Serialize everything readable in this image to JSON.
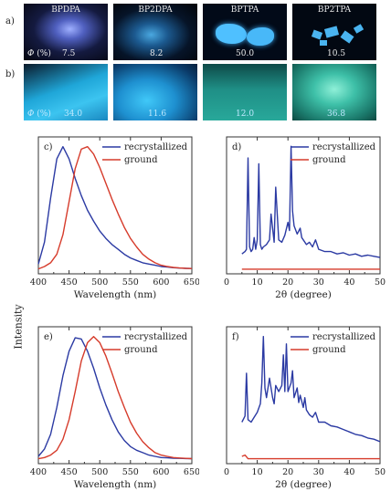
{
  "row_a_label": "a)",
  "row_b_label": "b)",
  "phi_symbol": "Φ",
  "phi_unit": "(%)",
  "photos_a": [
    {
      "name": "BPDPA",
      "phi": "7.5"
    },
    {
      "name": "BP2DPA",
      "phi": "8.2"
    },
    {
      "name": "BPTPA",
      "phi": "50.0"
    },
    {
      "name": "BP2TPA",
      "phi": "10.5"
    }
  ],
  "photos_b": [
    {
      "phi": "34.0"
    },
    {
      "phi": "11.6"
    },
    {
      "phi": "12.0"
    },
    {
      "phi": "36.8"
    }
  ],
  "y_axis_label": "Intensity",
  "chart_data": [
    {
      "panel": "c)",
      "type": "line",
      "xlabel": "Wavelength (nm)",
      "ylabel": "Intensity",
      "xlim": [
        400,
        650
      ],
      "xticks": [
        400,
        450,
        500,
        550,
        600,
        650
      ],
      "legend_position": "top-right",
      "series": [
        {
          "name": "recrystallized",
          "color": "#2b3aa3",
          "x": [
            400,
            410,
            420,
            430,
            440,
            450,
            460,
            470,
            480,
            490,
            500,
            510,
            520,
            530,
            540,
            550,
            560,
            570,
            580,
            590,
            600,
            610,
            620,
            630,
            640,
            650
          ],
          "y": [
            0.04,
            0.22,
            0.58,
            0.9,
            1.0,
            0.9,
            0.74,
            0.6,
            0.48,
            0.39,
            0.31,
            0.25,
            0.2,
            0.16,
            0.12,
            0.09,
            0.07,
            0.05,
            0.04,
            0.03,
            0.02,
            0.015,
            0.01,
            0.007,
            0.005,
            0.003
          ]
        },
        {
          "name": "ground",
          "color": "#d63b2b",
          "x": [
            400,
            410,
            420,
            430,
            440,
            450,
            460,
            470,
            480,
            490,
            500,
            510,
            520,
            530,
            540,
            550,
            560,
            570,
            580,
            590,
            600,
            610,
            620,
            630,
            640,
            650
          ],
          "y": [
            0.0,
            0.02,
            0.05,
            0.12,
            0.28,
            0.55,
            0.82,
            0.98,
            1.0,
            0.94,
            0.83,
            0.7,
            0.57,
            0.45,
            0.34,
            0.25,
            0.18,
            0.12,
            0.08,
            0.05,
            0.03,
            0.02,
            0.012,
            0.008,
            0.005,
            0.003
          ]
        }
      ]
    },
    {
      "panel": "d)",
      "type": "line",
      "xlabel": "2θ (degree)",
      "ylabel": "",
      "xlim": [
        0,
        50
      ],
      "xticks": [
        0,
        10,
        20,
        30,
        40,
        50
      ],
      "legend_position": "top-right",
      "series": [
        {
          "name": "recrystallized",
          "color": "#2b3aa3",
          "x": [
            5,
            6,
            6.5,
            7,
            7.5,
            8,
            8.5,
            9,
            9.5,
            10,
            10.5,
            11,
            11.5,
            12,
            13,
            14,
            14.5,
            15,
            15.5,
            16,
            17,
            18,
            19,
            20,
            20.5,
            21,
            21.5,
            22,
            23,
            24,
            24.5,
            25,
            26,
            27,
            28,
            29,
            30,
            32,
            34,
            36,
            38,
            40,
            42,
            44,
            46,
            48,
            50
          ],
          "y": [
            0.08,
            0.1,
            0.12,
            0.9,
            0.14,
            0.1,
            0.12,
            0.22,
            0.12,
            0.2,
            0.85,
            0.16,
            0.12,
            0.14,
            0.16,
            0.2,
            0.42,
            0.3,
            0.18,
            0.65,
            0.2,
            0.18,
            0.24,
            0.35,
            0.28,
            1.0,
            0.45,
            0.32,
            0.25,
            0.3,
            0.22,
            0.2,
            0.16,
            0.18,
            0.14,
            0.2,
            0.12,
            0.1,
            0.1,
            0.08,
            0.09,
            0.07,
            0.08,
            0.06,
            0.07,
            0.06,
            0.05
          ]
        },
        {
          "name": "ground",
          "color": "#d63b2b",
          "x": [
            5,
            10,
            20,
            30,
            40,
            50
          ],
          "y": [
            -0.05,
            -0.05,
            -0.05,
            -0.05,
            -0.05,
            -0.05
          ]
        }
      ]
    },
    {
      "panel": "e)",
      "type": "line",
      "xlabel": "Wavelength (nm)",
      "ylabel": "Intensity",
      "xlim": [
        400,
        650
      ],
      "xticks": [
        400,
        450,
        500,
        550,
        600,
        650
      ],
      "legend_position": "top-right",
      "series": [
        {
          "name": "recrystallized",
          "color": "#2b3aa3",
          "x": [
            400,
            410,
            420,
            430,
            440,
            450,
            460,
            470,
            480,
            490,
            500,
            510,
            520,
            530,
            540,
            550,
            560,
            570,
            580,
            590,
            600,
            610,
            620,
            630,
            640,
            650
          ],
          "y": [
            0.02,
            0.08,
            0.2,
            0.42,
            0.68,
            0.88,
            0.99,
            0.98,
            0.88,
            0.74,
            0.58,
            0.44,
            0.32,
            0.22,
            0.15,
            0.1,
            0.07,
            0.05,
            0.03,
            0.02,
            0.01,
            0.008,
            0.005,
            0.003,
            0.002,
            0.001
          ]
        },
        {
          "name": "ground",
          "color": "#d63b2b",
          "x": [
            400,
            410,
            420,
            430,
            440,
            450,
            460,
            470,
            480,
            490,
            500,
            510,
            520,
            530,
            540,
            550,
            560,
            570,
            580,
            590,
            600,
            610,
            620,
            630,
            640,
            650
          ],
          "y": [
            0.0,
            0.01,
            0.03,
            0.07,
            0.16,
            0.32,
            0.55,
            0.8,
            0.95,
            1.0,
            0.95,
            0.84,
            0.7,
            0.55,
            0.42,
            0.3,
            0.21,
            0.14,
            0.09,
            0.05,
            0.03,
            0.02,
            0.01,
            0.006,
            0.003,
            0.001
          ]
        }
      ]
    },
    {
      "panel": "f)",
      "type": "line",
      "xlabel": "2θ (degree)",
      "ylabel": "",
      "xlim": [
        0,
        50
      ],
      "xticks": [
        0,
        10,
        20,
        30,
        40,
        50
      ],
      "legend_position": "top-right",
      "series": [
        {
          "name": "recrystallized",
          "color": "#2b3aa3",
          "x": [
            5,
            6,
            6.5,
            7,
            8,
            9,
            10,
            11,
            11.5,
            12,
            12.5,
            13,
            14,
            15,
            15.5,
            16,
            17,
            18,
            18.5,
            19,
            19.5,
            20,
            21,
            21.5,
            22,
            23,
            23.5,
            24,
            25,
            25.5,
            26,
            27,
            28,
            29,
            30,
            32,
            34,
            36,
            38,
            40,
            42,
            44,
            46,
            48,
            50
          ],
          "y": [
            0.3,
            0.35,
            0.7,
            0.32,
            0.3,
            0.34,
            0.38,
            0.45,
            0.62,
            1.0,
            0.58,
            0.5,
            0.66,
            0.5,
            0.45,
            0.6,
            0.55,
            0.6,
            0.85,
            0.55,
            0.94,
            0.55,
            0.62,
            0.72,
            0.5,
            0.58,
            0.46,
            0.52,
            0.42,
            0.5,
            0.4,
            0.36,
            0.34,
            0.38,
            0.3,
            0.3,
            0.27,
            0.26,
            0.24,
            0.22,
            0.2,
            0.19,
            0.17,
            0.16,
            0.14
          ]
        },
        {
          "name": "ground",
          "color": "#d63b2b",
          "x": [
            5,
            6,
            7,
            10,
            20,
            30,
            40,
            50
          ],
          "y": [
            0.02,
            0.03,
            0.0,
            0.0,
            0.0,
            0.0,
            0.0,
            0.0
          ]
        }
      ]
    }
  ]
}
